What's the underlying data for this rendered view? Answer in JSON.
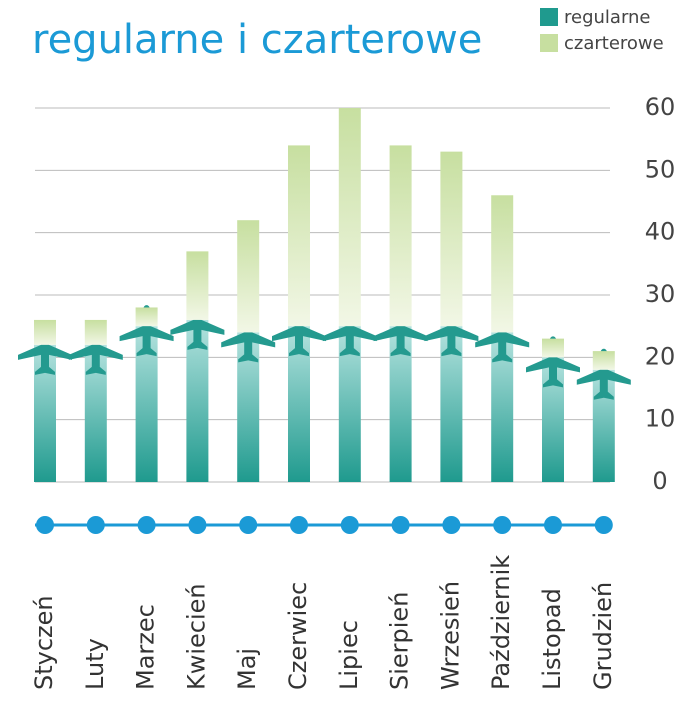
{
  "chart_data": {
    "type": "bar",
    "stacked": true,
    "title": "regularne i czarterowe",
    "categories": [
      "Styczeń",
      "Luty",
      "Marzec",
      "Kwiecień",
      "Maj",
      "Czerwiec",
      "Lipiec",
      "Sierpień",
      "Wrzesień",
      "Październik",
      "Listopad",
      "Grudzień"
    ],
    "series": [
      {
        "name": "regularne",
        "color": "#1f9a8e",
        "values": [
          22,
          22,
          25,
          26,
          24,
          25,
          25,
          25,
          25,
          24,
          20,
          18
        ]
      },
      {
        "name": "czarterowe",
        "color": "#c7dfa0",
        "values": [
          4,
          4,
          3,
          11,
          18,
          29,
          35,
          29,
          28,
          22,
          3,
          3
        ]
      }
    ],
    "ylim": [
      0,
      60
    ],
    "yticks": [
      0,
      10,
      20,
      30,
      40,
      50,
      60
    ],
    "grid": true,
    "legend": "top-right"
  }
}
